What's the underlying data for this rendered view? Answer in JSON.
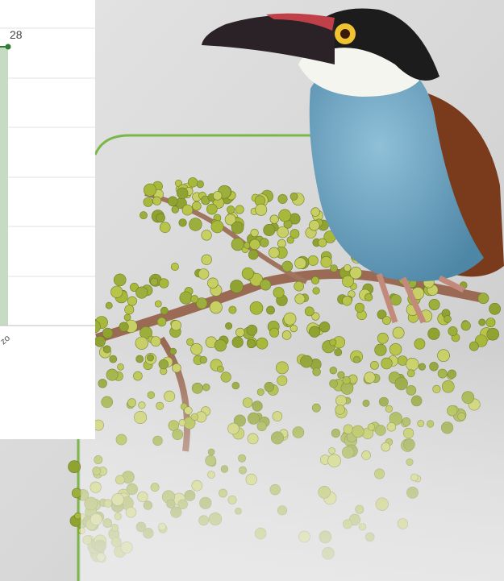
{
  "chart_panel": {
    "data_label": "28",
    "x_label_fragment": "zo"
  }
}
